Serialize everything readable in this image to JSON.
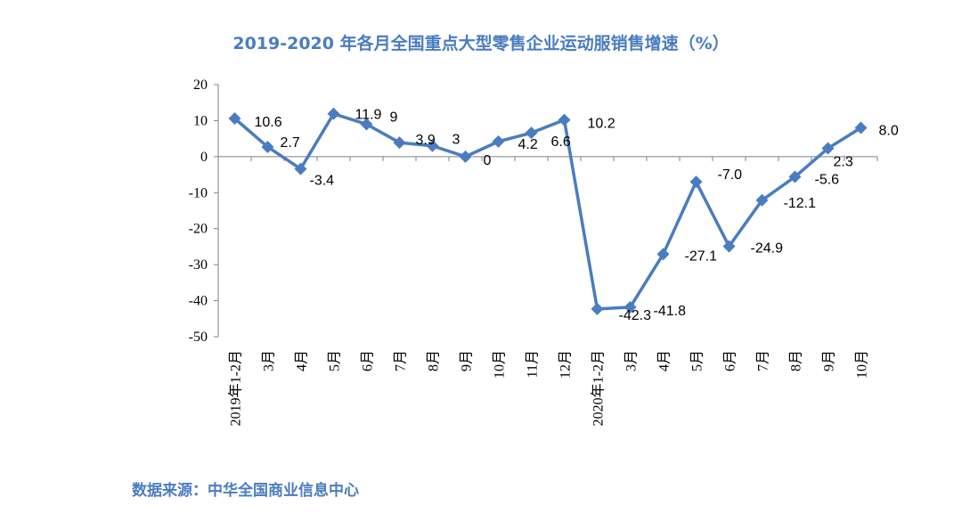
{
  "chart_data": {
    "type": "line",
    "title": "2019-2020 年各月全国重点大型零售企业运动服销售增速（%）",
    "xlabel": "",
    "ylabel": "",
    "ylim": [
      -50,
      20
    ],
    "yticks": [
      "20",
      "10",
      "0",
      "-10",
      "-20",
      "-30",
      "-40",
      "-50"
    ],
    "categories": [
      "2019年1-2月",
      "3月",
      "4月",
      "5月",
      "6月",
      "7月",
      "8月",
      "9月",
      "10月",
      "11月",
      "12月",
      "2020年1-2月",
      "3月",
      "4月",
      "5月",
      "6月",
      "7月",
      "8月",
      "9月",
      "10月"
    ],
    "values": [
      10.6,
      2.7,
      -3.4,
      11.9,
      9,
      3.9,
      3,
      0,
      4.2,
      6.6,
      10.2,
      -42.3,
      -41.8,
      -27.1,
      -7.0,
      -24.9,
      -12.1,
      -5.6,
      2.3,
      8.0
    ],
    "data_labels": [
      "10.6",
      "2.7",
      "-3.4",
      "11.9",
      "9",
      "3.9",
      "3",
      "0",
      "4.2",
      "6.6",
      "10.2",
      "-42.3",
      "-41.8",
      "-27.1",
      "-7.0",
      "-24.9",
      "-12.1",
      "-5.6",
      "2.3",
      "8.0"
    ],
    "series_color": "#4a7cc0",
    "grid": false,
    "legend": "none"
  },
  "source_note": "数据来源：中华全国商业信息中心",
  "colors": {
    "title": "#4a7cc0",
    "line": "#4a7cc0",
    "axis": "#808080"
  }
}
